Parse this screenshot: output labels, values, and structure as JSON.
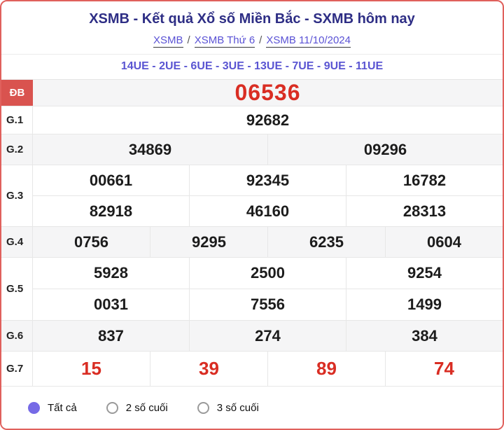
{
  "header": {
    "title": "XSMB - Kết quả Xổ số Miền Bắc - SXMB hôm nay",
    "separator": "/",
    "breadcrumb": [
      {
        "label": "XSMB"
      },
      {
        "label": "XSMB Thứ 6"
      },
      {
        "label": "XSMB 11/10/2024"
      }
    ],
    "subtitle": "14UE - 2UE - 6UE - 3UE - 13UE - 7UE - 9UE - 11UE"
  },
  "results": {
    "db": {
      "label": "ĐB",
      "value": "06536"
    },
    "g1": {
      "label": "G.1",
      "values": [
        "92682"
      ]
    },
    "g2": {
      "label": "G.2",
      "values": [
        "34869",
        "09296"
      ]
    },
    "g3": {
      "label": "G.3",
      "lines": [
        [
          "00661",
          "92345",
          "16782"
        ],
        [
          "82918",
          "46160",
          "28313"
        ]
      ]
    },
    "g4": {
      "label": "G.4",
      "values": [
        "0756",
        "9295",
        "6235",
        "0604"
      ]
    },
    "g5": {
      "label": "G.5",
      "lines": [
        [
          "5928",
          "2500",
          "9254"
        ],
        [
          "0031",
          "7556",
          "1499"
        ]
      ]
    },
    "g6": {
      "label": "G.6",
      "values": [
        "837",
        "274",
        "384"
      ]
    },
    "g7": {
      "label": "G.7",
      "values": [
        "15",
        "39",
        "89",
        "74"
      ]
    }
  },
  "filters": {
    "options": [
      {
        "label": "Tất cả",
        "selected": true
      },
      {
        "label": "2 số cuối",
        "selected": false
      },
      {
        "label": "3 số cuối",
        "selected": false
      }
    ]
  },
  "colors": {
    "card_border_red": "#e0605c",
    "db_cell_red": "#d9534f",
    "number_red": "#d92d23",
    "title_navy": "#2e2e85",
    "link_purple": "#5a52d5",
    "subtitle_purple": "#5a55d2",
    "radio_purple": "#766ae6",
    "row_gray": "#f5f5f6"
  }
}
